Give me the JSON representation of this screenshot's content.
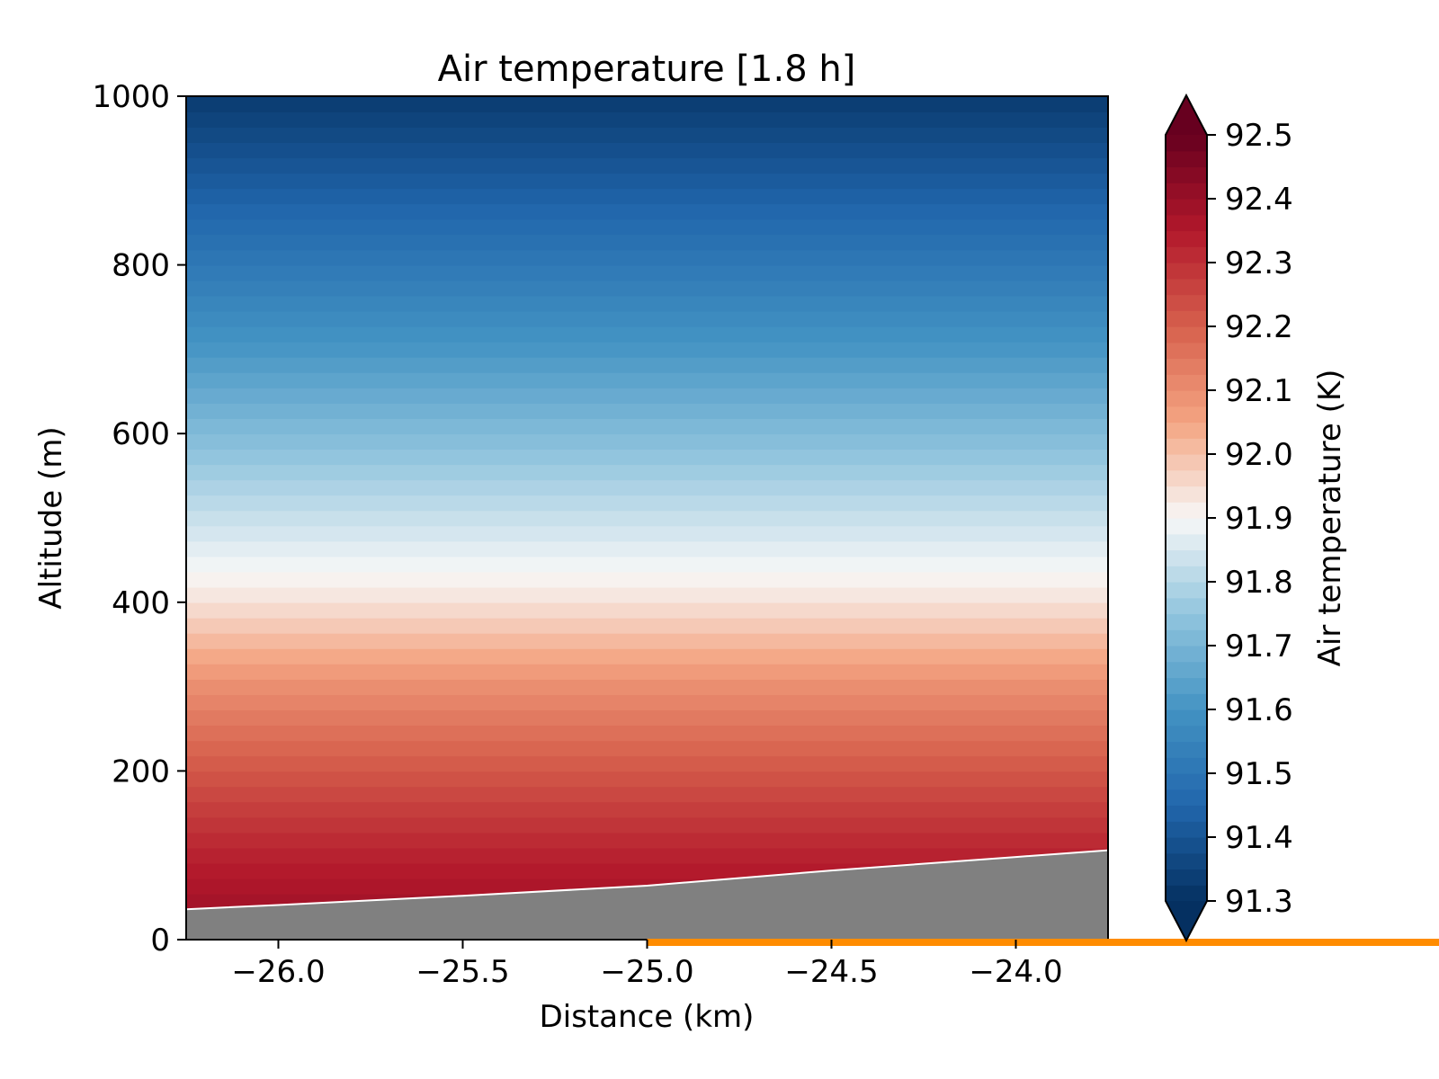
{
  "chart_data": {
    "type": "heatmap",
    "title": "Air temperature [1.8 h]",
    "xlabel": "Distance (km)",
    "ylabel": "Altitude (m)",
    "xlim": [
      -26.25,
      -23.75
    ],
    "ylim": [
      0,
      1000
    ],
    "xticks": [
      -26.0,
      -25.5,
      -25.0,
      -24.5,
      -24.0
    ],
    "xtick_labels": [
      "−26.0",
      "−25.5",
      "−25.0",
      "−24.5",
      "−24.0"
    ],
    "yticks": [
      0,
      200,
      400,
      600,
      800,
      1000
    ],
    "ytick_labels": [
      "0",
      "200",
      "400",
      "600",
      "800",
      "1000"
    ],
    "field": {
      "description": "temperature decreases with altitude",
      "altitude_m": [
        40,
        100,
        200,
        300,
        400,
        500,
        600,
        700,
        800,
        900,
        1000
      ],
      "temperature_K": [
        92.38,
        92.33,
        92.22,
        92.1,
        91.94,
        91.83,
        91.72,
        91.61,
        91.51,
        91.42,
        91.33
      ]
    },
    "terrain": {
      "color": "#808080",
      "distance_km": [
        -26.25,
        -26.0,
        -25.5,
        -25.0,
        -24.5,
        -24.0,
        -23.75
      ],
      "altitude_m": [
        36,
        41,
        52,
        64,
        82,
        98,
        106
      ]
    },
    "colorbar": {
      "label": "Air temperature (K)",
      "vmin": 91.3,
      "vmax": 92.5,
      "ticks": [
        91.3,
        91.4,
        91.5,
        91.6,
        91.7,
        91.8,
        91.9,
        92.0,
        92.1,
        92.2,
        92.3,
        92.4,
        92.5
      ],
      "tick_labels": [
        "91.3",
        "91.4",
        "91.5",
        "91.6",
        "91.7",
        "91.8",
        "91.9",
        "92.0",
        "92.1",
        "92.2",
        "92.3",
        "92.4",
        "92.5"
      ],
      "colormap": "RdBu_r",
      "extend": "both"
    },
    "highlight_line": {
      "color": "#ff8c00",
      "from_distance_km": -25.0
    },
    "grid": false,
    "legend": "none"
  }
}
